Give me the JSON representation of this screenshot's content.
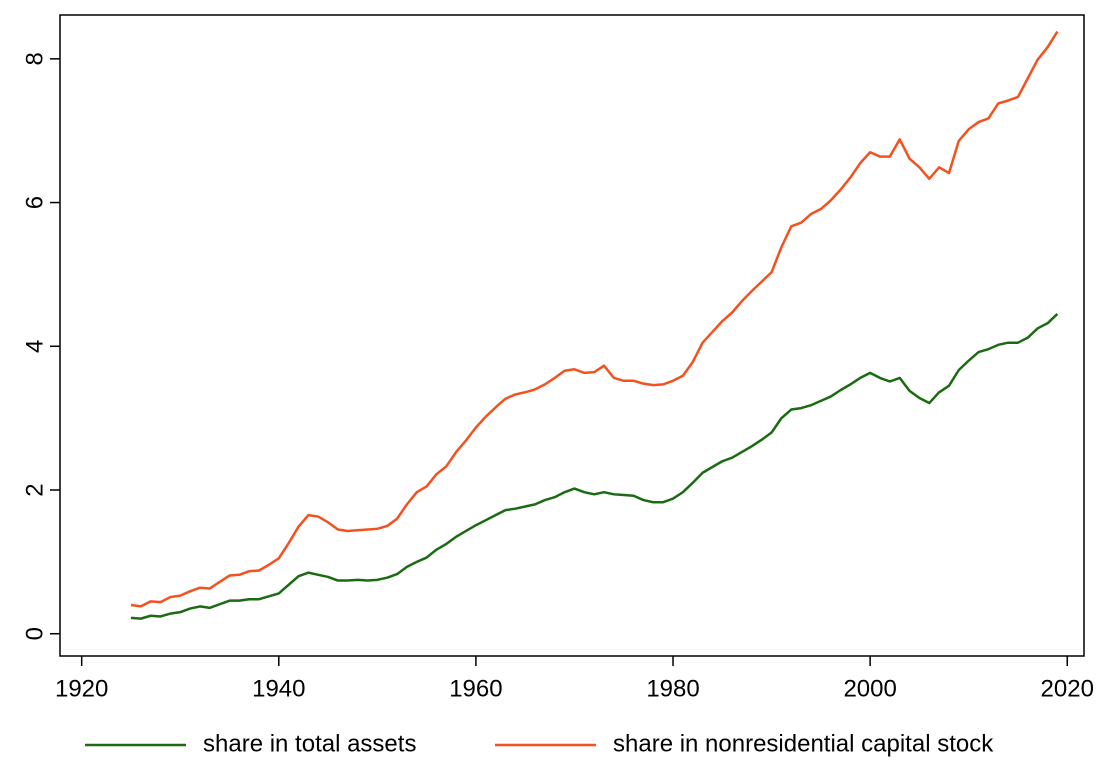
{
  "chart_data": {
    "type": "line",
    "x": [
      1925,
      1926,
      1927,
      1928,
      1929,
      1930,
      1931,
      1932,
      1933,
      1934,
      1935,
      1936,
      1937,
      1938,
      1939,
      1940,
      1941,
      1942,
      1943,
      1944,
      1945,
      1946,
      1947,
      1948,
      1949,
      1950,
      1951,
      1952,
      1953,
      1954,
      1955,
      1956,
      1957,
      1958,
      1959,
      1960,
      1961,
      1962,
      1963,
      1964,
      1965,
      1966,
      1967,
      1968,
      1969,
      1970,
      1971,
      1972,
      1973,
      1974,
      1975,
      1976,
      1977,
      1978,
      1979,
      1980,
      1981,
      1982,
      1983,
      1984,
      1985,
      1986,
      1987,
      1988,
      1989,
      1990,
      1991,
      1992,
      1993,
      1994,
      1995,
      1996,
      1997,
      1998,
      1999,
      2000,
      2001,
      2002,
      2003,
      2004,
      2005,
      2006,
      2007,
      2008,
      2009,
      2010,
      2011,
      2012,
      2013,
      2014,
      2015,
      2016,
      2017,
      2018,
      2019
    ],
    "series": [
      {
        "name": "share in total assets",
        "color": "#1a6b12",
        "values": [
          0.22,
          0.21,
          0.25,
          0.24,
          0.28,
          0.3,
          0.35,
          0.38,
          0.36,
          0.41,
          0.46,
          0.46,
          0.48,
          0.48,
          0.52,
          0.56,
          0.68,
          0.8,
          0.85,
          0.82,
          0.79,
          0.74,
          0.74,
          0.75,
          0.74,
          0.75,
          0.78,
          0.83,
          0.93,
          1.0,
          1.06,
          1.17,
          1.25,
          1.35,
          1.43,
          1.51,
          1.58,
          1.65,
          1.72,
          1.74,
          1.77,
          1.8,
          1.86,
          1.9,
          1.97,
          2.02,
          1.97,
          1.94,
          1.97,
          1.94,
          1.93,
          1.92,
          1.86,
          1.83,
          1.83,
          1.88,
          1.97,
          2.1,
          2.24,
          2.32,
          2.4,
          2.45,
          2.53,
          2.61,
          2.7,
          2.8,
          3.0,
          3.12,
          3.14,
          3.18,
          3.24,
          3.3,
          3.39,
          3.47,
          3.56,
          3.63,
          3.56,
          3.51,
          3.56,
          3.38,
          3.28,
          3.21,
          3.36,
          3.45,
          3.67,
          3.8,
          3.92,
          3.96,
          4.02,
          4.05,
          4.05,
          4.12,
          4.25,
          4.32,
          4.45
        ]
      },
      {
        "name": "share in nonresidential capital stock",
        "color": "#f4511e",
        "values": [
          0.4,
          0.38,
          0.45,
          0.44,
          0.51,
          0.53,
          0.59,
          0.64,
          0.63,
          0.72,
          0.81,
          0.82,
          0.87,
          0.88,
          0.96,
          1.05,
          1.26,
          1.49,
          1.65,
          1.63,
          1.55,
          1.45,
          1.43,
          1.44,
          1.45,
          1.46,
          1.5,
          1.6,
          1.8,
          1.97,
          2.05,
          2.22,
          2.33,
          2.53,
          2.69,
          2.87,
          3.02,
          3.15,
          3.27,
          3.33,
          3.36,
          3.4,
          3.47,
          3.56,
          3.66,
          3.68,
          3.63,
          3.64,
          3.73,
          3.56,
          3.52,
          3.52,
          3.48,
          3.46,
          3.47,
          3.52,
          3.59,
          3.78,
          4.05,
          4.2,
          4.35,
          4.47,
          4.63,
          4.77,
          4.9,
          5.03,
          5.38,
          5.67,
          5.72,
          5.84,
          5.91,
          6.03,
          6.18,
          6.35,
          6.55,
          6.7,
          6.64,
          6.64,
          6.88,
          6.61,
          6.49,
          6.33,
          6.49,
          6.41,
          6.86,
          7.02,
          7.12,
          7.17,
          7.38,
          7.42,
          7.47,
          7.73,
          7.99,
          8.16,
          8.38
        ]
      }
    ],
    "xlim": [
      1917.8,
      2021.7
    ],
    "xticks": [
      1920,
      1940,
      1960,
      1980,
      2000,
      2020
    ],
    "ylim": [
      -0.31,
      8.61
    ],
    "yticks": [
      0,
      2,
      4,
      6,
      8
    ],
    "grid": false,
    "legend": "bottom"
  }
}
